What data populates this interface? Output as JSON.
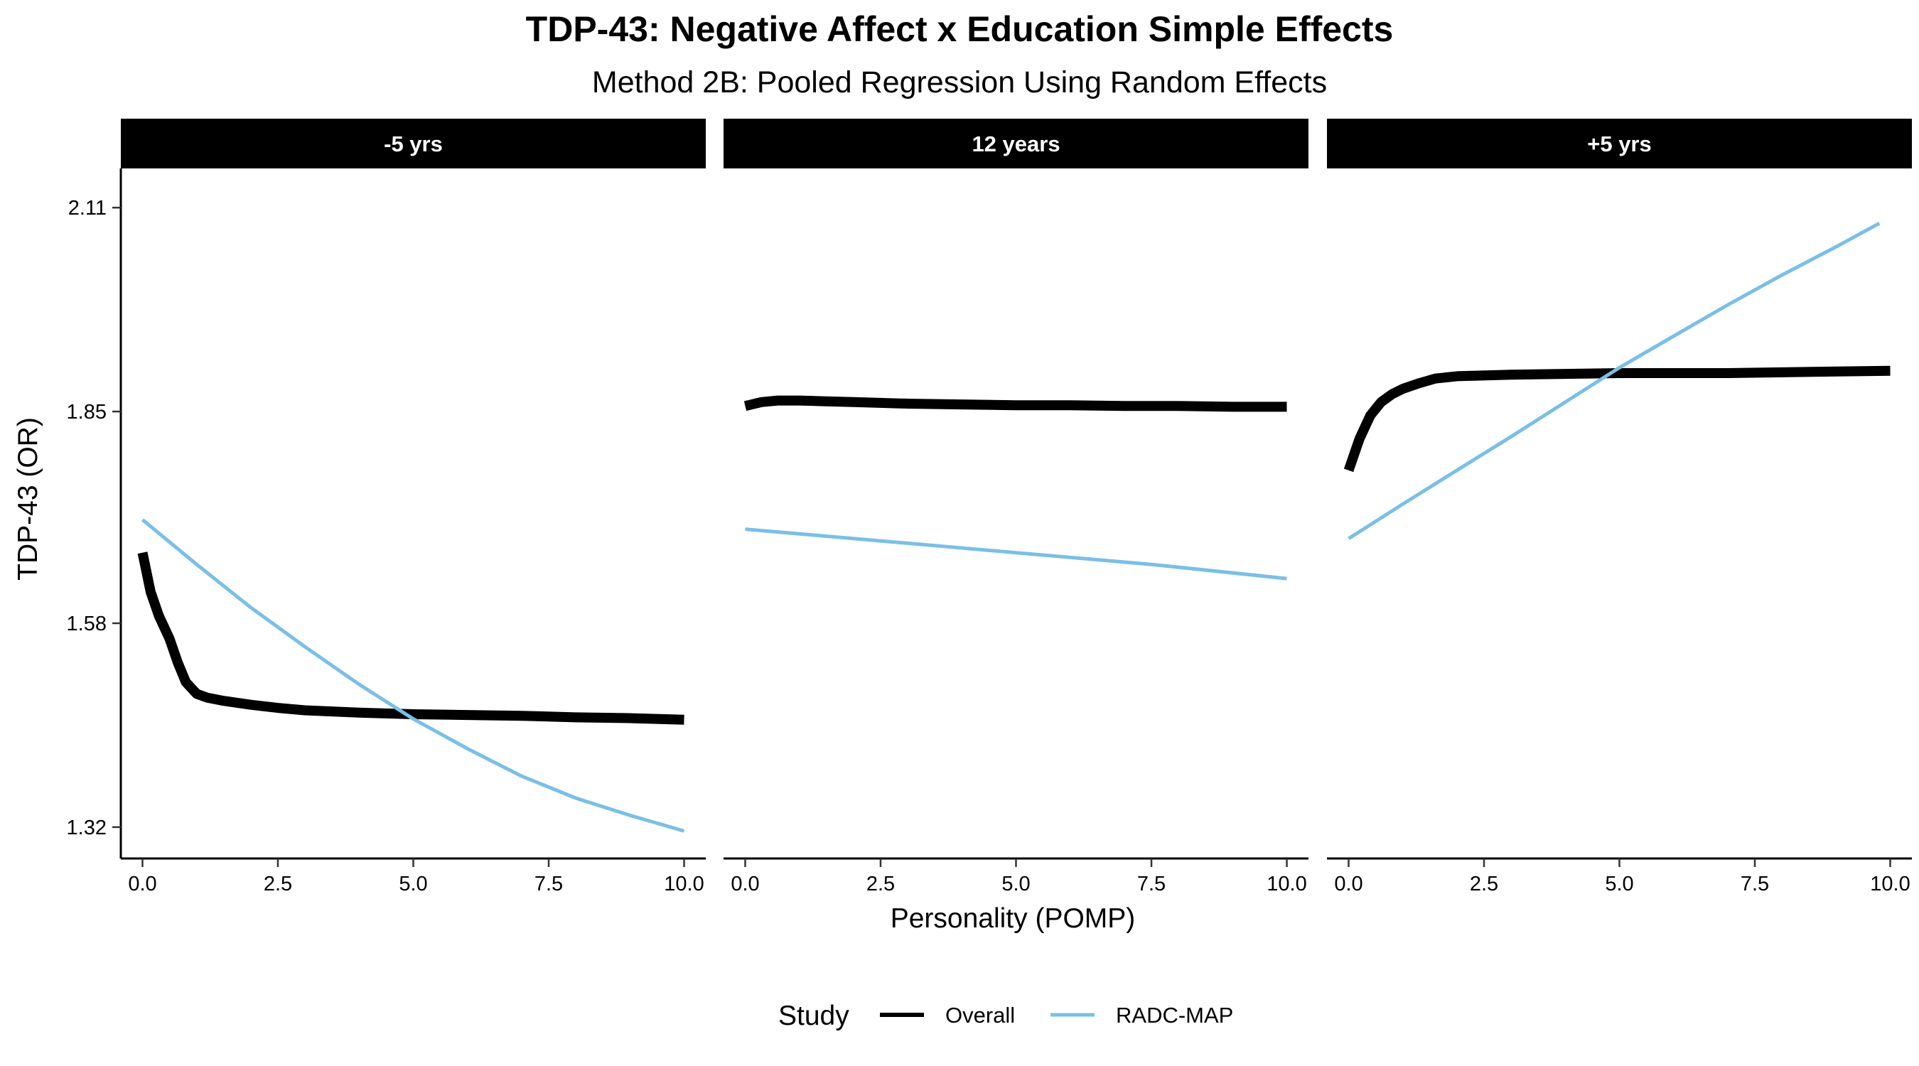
{
  "chart_data": {
    "type": "line",
    "title": "TDP-43: Negative Affect x Education Simple Effects",
    "subtitle": "Method 2B: Pooled Regression Using Random Effects",
    "xlabel": "Personality (POMP)",
    "ylabel": "TDP-43 (OR)",
    "xlim": [
      -0.4,
      10.4
    ],
    "ylim": [
      1.28,
      2.16
    ],
    "x_ticks": [
      0,
      2.5,
      5,
      7.5,
      10
    ],
    "x_tick_labels": [
      "0.0",
      "2.5",
      "5.0",
      "7.5",
      "10.0"
    ],
    "y_ticks": [
      1.32,
      1.58,
      1.85,
      2.11
    ],
    "y_tick_labels": [
      "1.32",
      "1.58",
      "1.85",
      "2.11"
    ],
    "legend": {
      "title": "Study",
      "position": "bottom",
      "entries": [
        {
          "name": "Overall",
          "color": "#000000"
        },
        {
          "name": "RADC-MAP",
          "color": "#7abfe6"
        }
      ]
    },
    "panels": [
      {
        "label": "-5 yrs",
        "series": [
          {
            "name": "Overall",
            "color": "#000000",
            "x": [
              0,
              0.15,
              0.3,
              0.5,
              0.65,
              0.8,
              1.0,
              1.2,
              1.5,
              2.0,
              2.5,
              3.0,
              4.0,
              5.0,
              6.0,
              7.0,
              8.0,
              9.0,
              10.0
            ],
            "y": [
              1.67,
              1.62,
              1.59,
              1.56,
              1.53,
              1.505,
              1.49,
              1.485,
              1.481,
              1.476,
              1.472,
              1.469,
              1.466,
              1.464,
              1.463,
              1.462,
              1.46,
              1.459,
              1.457
            ]
          },
          {
            "name": "RADC-MAP",
            "color": "#7abfe6",
            "x": [
              0,
              1,
              2,
              3,
              4,
              5,
              6,
              7,
              8,
              9,
              10
            ],
            "y": [
              1.712,
              1.655,
              1.6,
              1.55,
              1.502,
              1.458,
              1.42,
              1.385,
              1.357,
              1.335,
              1.315
            ]
          }
        ]
      },
      {
        "label": "12 years",
        "series": [
          {
            "name": "Overall",
            "color": "#000000",
            "x": [
              0,
              0.3,
              0.6,
              1.0,
              1.5,
              2.0,
              3.0,
              4.0,
              5.0,
              6.0,
              7.0,
              8.0,
              9.0,
              10.0
            ],
            "y": [
              1.857,
              1.862,
              1.864,
              1.864,
              1.863,
              1.862,
              1.86,
              1.859,
              1.858,
              1.858,
              1.857,
              1.857,
              1.856,
              1.856
            ]
          },
          {
            "name": "RADC-MAP",
            "color": "#7abfe6",
            "x": [
              0,
              2.5,
              5,
              7.5,
              10
            ],
            "y": [
              1.7,
              1.685,
              1.67,
              1.655,
              1.637
            ]
          }
        ]
      },
      {
        "label": "+5 yrs",
        "series": [
          {
            "name": "Overall",
            "color": "#000000",
            "x": [
              0,
              0.2,
              0.4,
              0.6,
              0.8,
              1.0,
              1.3,
              1.6,
              2.0,
              3.0,
              4.0,
              5.0,
              6.0,
              7.0,
              8.0,
              9.0,
              10.0
            ],
            "y": [
              1.775,
              1.815,
              1.845,
              1.862,
              1.872,
              1.879,
              1.886,
              1.892,
              1.895,
              1.897,
              1.898,
              1.899,
              1.899,
              1.899,
              1.9,
              1.901,
              1.902
            ]
          },
          {
            "name": "RADC-MAP",
            "color": "#7abfe6",
            "x": [
              0,
              1,
              2,
              3,
              4,
              5,
              6,
              7,
              8,
              9,
              9.8
            ],
            "y": [
              1.688,
              1.732,
              1.775,
              1.818,
              1.862,
              1.906,
              1.946,
              1.986,
              2.024,
              2.06,
              2.09
            ]
          }
        ]
      }
    ]
  }
}
